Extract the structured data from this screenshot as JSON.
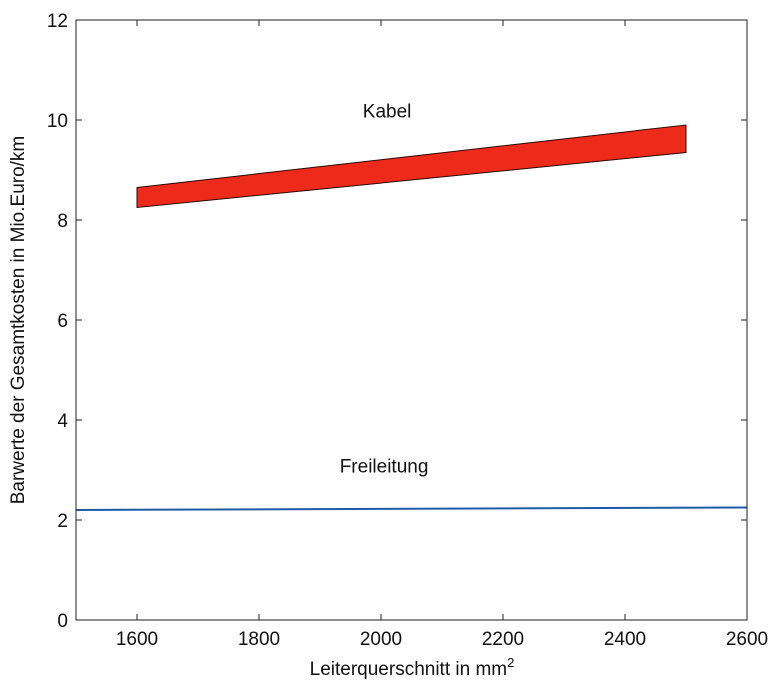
{
  "chart_data": {
    "type": "area",
    "title": "",
    "xlabel": "Leiterquerschnitt in mm",
    "xlabel_sup": "2",
    "ylabel": "Barwerte der Gesamtkosten in Mio.Euro/km",
    "xlim": [
      1500,
      2600
    ],
    "ylim": [
      0,
      12
    ],
    "xticks": [
      1600,
      1800,
      2000,
      2200,
      2400,
      2600
    ],
    "yticks": [
      0,
      2,
      4,
      6,
      8,
      10,
      12
    ],
    "grid": false,
    "series": [
      {
        "name": "Kabel",
        "kind": "band",
        "color": "#ee2a1b",
        "x": [
          1600,
          2500
        ],
        "lower": [
          8.25,
          9.35
        ],
        "upper": [
          8.65,
          9.9
        ]
      },
      {
        "name": "Freileitung",
        "kind": "line",
        "color": "#1f5aa6",
        "x": [
          1500,
          2600
        ],
        "y": [
          2.2,
          2.25
        ]
      }
    ],
    "annotations": [
      {
        "text": "Kabel",
        "x": 2010,
        "y": 10.05
      },
      {
        "text": "Freileitung",
        "x": 2005,
        "y": 2.95
      }
    ]
  }
}
